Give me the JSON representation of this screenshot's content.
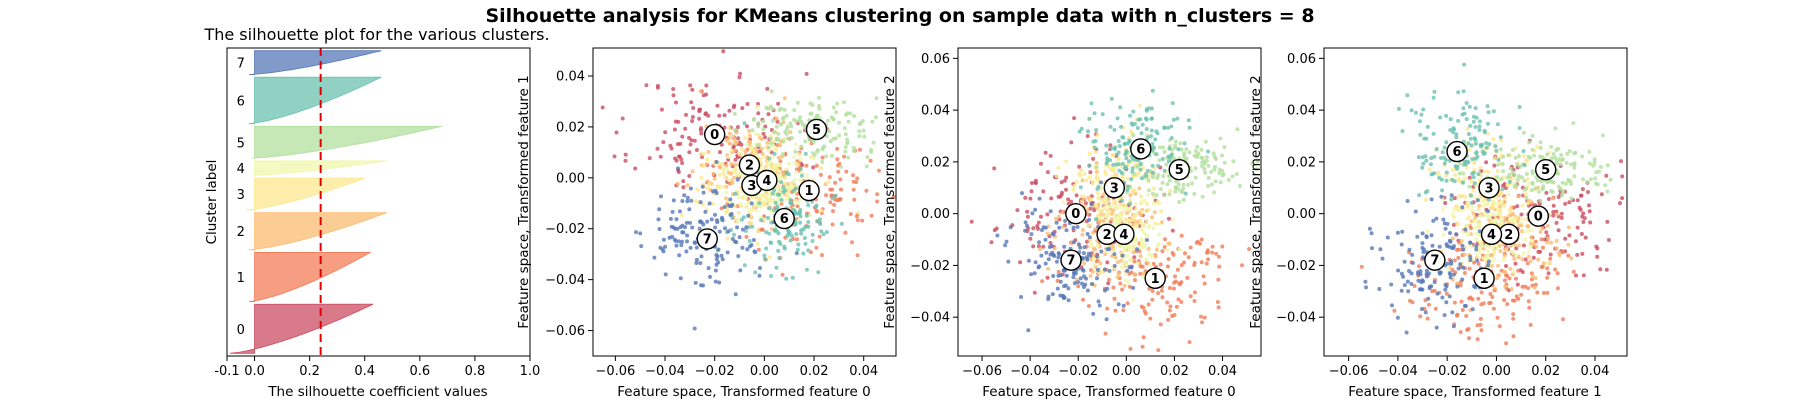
{
  "figure": {
    "suptitle": "Silhouette analysis for KMeans clustering on sample data with n_clusters = 8"
  },
  "chart_data": [
    {
      "type": "silhouette",
      "title": "The silhouette plot for the various clusters.",
      "xlabel": "The silhouette coefficient values",
      "ylabel": "Cluster label",
      "xlim": [
        -0.1,
        1.0
      ],
      "xticks": [
        "-0.1",
        "0.0",
        "0.2",
        "0.4",
        "0.6",
        "0.8",
        "1.0"
      ],
      "xtick_values": [
        -0.1,
        0.0,
        0.2,
        0.4,
        0.6,
        0.8,
        1.0
      ],
      "average_silhouette": 0.24,
      "clusters": [
        {
          "label": "0",
          "size": 185,
          "min": -0.09,
          "max": 0.43,
          "color": "#cb4e62"
        },
        {
          "label": "1",
          "size": 185,
          "min": -0.02,
          "max": 0.42,
          "color": "#f37c58"
        },
        {
          "label": "2",
          "size": 140,
          "min": -0.02,
          "max": 0.48,
          "color": "#fbbb71"
        },
        {
          "label": "3",
          "size": 120,
          "min": -0.03,
          "max": 0.4,
          "color": "#fce890"
        },
        {
          "label": "4",
          "size": 55,
          "min": -0.01,
          "max": 0.48,
          "color": "#f0f7ae"
        },
        {
          "label": "5",
          "size": 120,
          "min": -0.01,
          "max": 0.68,
          "color": "#b3e09f"
        },
        {
          "label": "6",
          "size": 175,
          "min": -0.02,
          "max": 0.46,
          "color": "#6bc2b0"
        },
        {
          "label": "7",
          "size": 90,
          "min": -0.02,
          "max": 0.46,
          "color": "#5678b8"
        }
      ],
      "line_color": "#e00000"
    },
    {
      "type": "scatter",
      "xlabel": "Feature space, Transformed feature 0",
      "ylabel": "Feature space, Transformed feature 1",
      "xlim": [
        -0.069,
        0.053
      ],
      "ylim": [
        -0.07,
        0.051
      ],
      "xticks": [
        "−0.06",
        "−0.04",
        "−0.02",
        "0.00",
        "0.02",
        "0.04"
      ],
      "xtick_values": [
        -0.06,
        -0.04,
        -0.02,
        0.0,
        0.02,
        0.04
      ],
      "yticks": [
        "−0.06",
        "−0.04",
        "−0.02",
        "0.00",
        "0.02",
        "0.04"
      ],
      "ytick_values": [
        -0.06,
        -0.04,
        -0.02,
        0.0,
        0.02,
        0.04
      ],
      "centers": [
        {
          "label": "0",
          "x": -0.02,
          "y": 0.017
        },
        {
          "label": "1",
          "x": 0.018,
          "y": -0.005
        },
        {
          "label": "2",
          "x": -0.006,
          "y": 0.005
        },
        {
          "label": "3",
          "x": -0.005,
          "y": -0.003
        },
        {
          "label": "4",
          "x": 0.001,
          "y": -0.001
        },
        {
          "label": "5",
          "x": 0.021,
          "y": 0.019
        },
        {
          "label": "6",
          "x": 0.008,
          "y": -0.016
        },
        {
          "label": "7",
          "x": -0.023,
          "y": -0.024
        }
      ]
    },
    {
      "type": "scatter",
      "xlabel": "Feature space, Transformed feature 0",
      "ylabel": "Feature space, Transformed feature 2",
      "xlim": [
        -0.07,
        0.056
      ],
      "ylim": [
        -0.055,
        0.064
      ],
      "xticks": [
        "−0.06",
        "−0.04",
        "−0.02",
        "0.00",
        "0.02",
        "0.04"
      ],
      "xtick_values": [
        -0.06,
        -0.04,
        -0.02,
        0.0,
        0.02,
        0.04
      ],
      "yticks": [
        "−0.04",
        "−0.02",
        "0.00",
        "0.02",
        "0.04",
        "0.06"
      ],
      "ytick_values": [
        -0.04,
        -0.02,
        0.0,
        0.02,
        0.04,
        0.06
      ],
      "centers": [
        {
          "label": "0",
          "x": -0.021,
          "y": 0.0
        },
        {
          "label": "1",
          "x": 0.012,
          "y": -0.025
        },
        {
          "label": "2",
          "x": -0.008,
          "y": -0.008
        },
        {
          "label": "3",
          "x": -0.005,
          "y": 0.01
        },
        {
          "label": "4",
          "x": -0.001,
          "y": -0.008
        },
        {
          "label": "5",
          "x": 0.022,
          "y": 0.017
        },
        {
          "label": "6",
          "x": 0.006,
          "y": 0.025
        },
        {
          "label": "7",
          "x": -0.023,
          "y": -0.018
        }
      ]
    },
    {
      "type": "scatter",
      "xlabel": "Feature space, Transformed feature 1",
      "ylabel": "Feature space, Transformed feature 2",
      "xlim": [
        -0.07,
        0.053
      ],
      "ylim": [
        -0.055,
        0.064
      ],
      "xticks": [
        "−0.06",
        "−0.04",
        "−0.02",
        "0.00",
        "0.02",
        "0.04"
      ],
      "xtick_values": [
        -0.06,
        -0.04,
        -0.02,
        0.0,
        0.02,
        0.04
      ],
      "yticks": [
        "−0.04",
        "−0.02",
        "0.00",
        "0.02",
        "0.04",
        "0.06"
      ],
      "ytick_values": [
        -0.04,
        -0.02,
        0.0,
        0.02,
        0.04,
        0.06
      ],
      "centers": [
        {
          "label": "0",
          "x": 0.017,
          "y": -0.001
        },
        {
          "label": "1",
          "x": -0.005,
          "y": -0.025
        },
        {
          "label": "2",
          "x": 0.005,
          "y": -0.008
        },
        {
          "label": "3",
          "x": -0.003,
          "y": 0.01
        },
        {
          "label": "4",
          "x": -0.002,
          "y": -0.008
        },
        {
          "label": "5",
          "x": 0.02,
          "y": 0.017
        },
        {
          "label": "6",
          "x": -0.016,
          "y": 0.024
        },
        {
          "label": "7",
          "x": -0.025,
          "y": -0.018
        }
      ]
    }
  ]
}
